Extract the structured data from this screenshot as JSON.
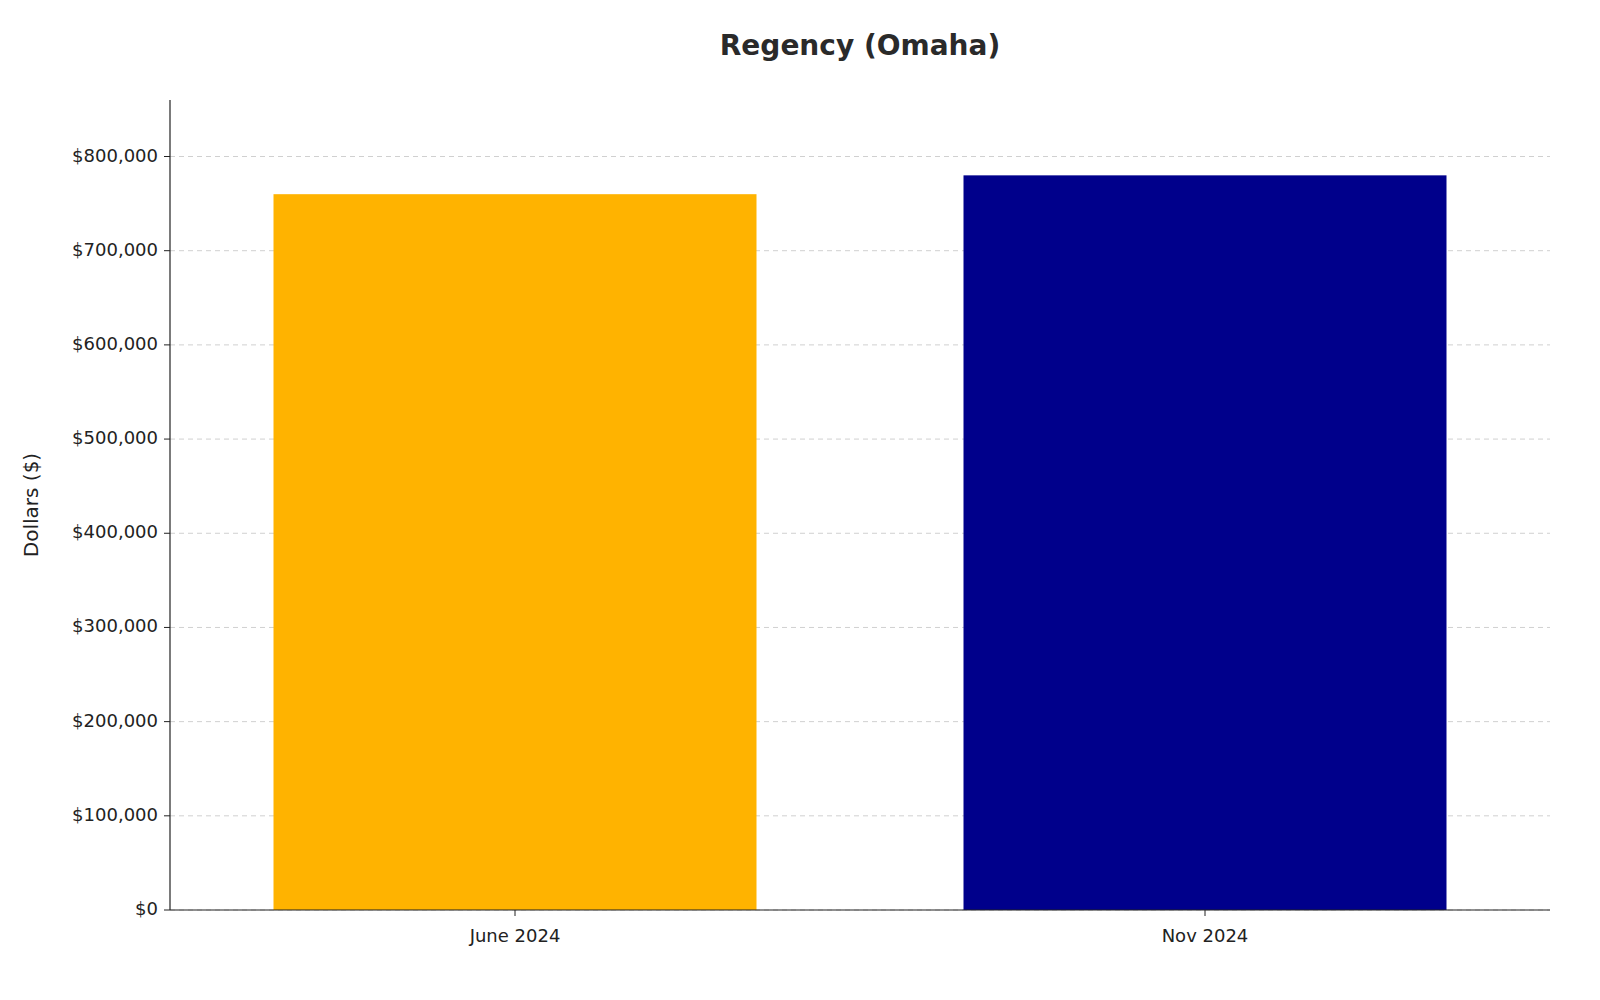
{
  "chart_data": {
    "type": "bar",
    "title": "Regency (Omaha)",
    "categories": [
      "June 2024",
      "Nov 2024"
    ],
    "values": [
      760000,
      780000
    ],
    "colors": [
      "#FFB300",
      "#00008B"
    ],
    "y_label": "Dollars ($)",
    "ylim": [
      0,
      860000
    ],
    "yticks": [
      {
        "value": 0,
        "label": "$0"
      },
      {
        "value": 100000,
        "label": "$100,000"
      },
      {
        "value": 200000,
        "label": "$200,000"
      },
      {
        "value": 300000,
        "label": "$300,000"
      },
      {
        "value": 400000,
        "label": "$400,000"
      },
      {
        "value": 500000,
        "label": "$500,000"
      },
      {
        "value": 600000,
        "label": "$600,000"
      },
      {
        "value": 700000,
        "label": "$700,000"
      },
      {
        "value": 800000,
        "label": "$800,000"
      }
    ],
    "grid": true
  }
}
